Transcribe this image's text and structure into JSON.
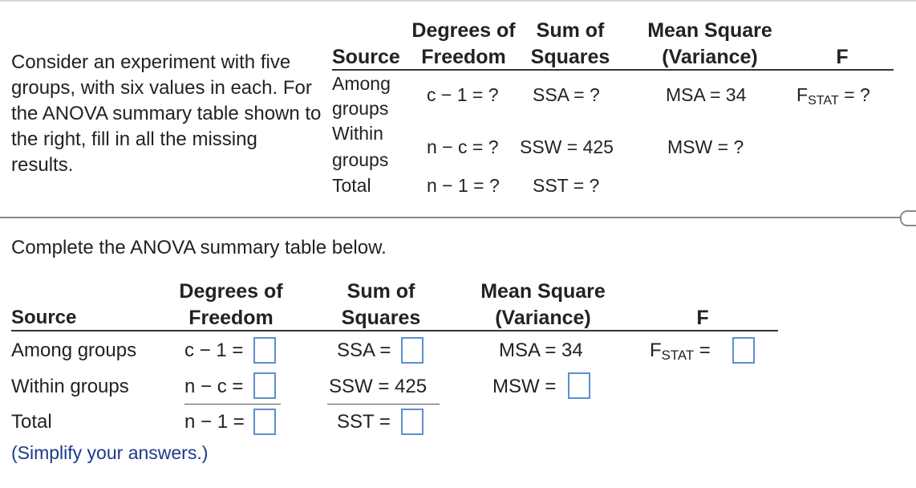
{
  "prompt": "Consider an experiment with five groups, with six values in each. For the ANOVA summary table shown to the right, fill in all the missing results.",
  "given_table": {
    "headers": {
      "source": "Source",
      "df_line1": "Degrees of",
      "df_line2": "Freedom",
      "ss_line1": "Sum of",
      "ss_line2": "Squares",
      "ms_line1": "Mean Square",
      "ms_line2": "(Variance)",
      "f": "F"
    },
    "rows": [
      {
        "source_line1": "Among",
        "source_line2": "groups",
        "df": "c − 1 = ?",
        "ss": "SSA = ?",
        "ms": "MSA = 34",
        "f_base": "F",
        "f_sub": "STAT",
        "f_tail": " = ?"
      },
      {
        "source_line1": "Within",
        "source_line2": "groups",
        "df": "n − c = ?",
        "ss": "SSW = 425",
        "ms": "MSW = ?"
      },
      {
        "source_line1": "Total",
        "df": "n − 1 = ?",
        "ss": "SST = ?"
      }
    ]
  },
  "instruction": "Complete the ANOVA summary table below.",
  "answer_table": {
    "headers": {
      "source": "Source",
      "df_line1": "Degrees of",
      "df_line2": "Freedom",
      "ss_line1": "Sum of",
      "ss_line2": "Squares",
      "ms_line1": "Mean Square",
      "ms_line2": "(Variance)",
      "f": "F"
    },
    "rows": [
      {
        "source": "Among groups",
        "df_label": "c − 1 =",
        "ss_label": "SSA =",
        "ms_text": "MSA = 34",
        "f_base": "F",
        "f_sub": "STAT",
        "f_eq": " ="
      },
      {
        "source": "Within groups",
        "df_label": "n − c =",
        "ss_text": "SSW = 425",
        "ms_label": "MSW ="
      },
      {
        "source": "Total",
        "df_label": "n − 1 =",
        "ss_label": "SST ="
      }
    ]
  },
  "note": "(Simplify your answers.)",
  "colors": {
    "input_border": "#5b8fd0",
    "note_text": "#1d3a8a",
    "divider": "#8a8a8a"
  }
}
